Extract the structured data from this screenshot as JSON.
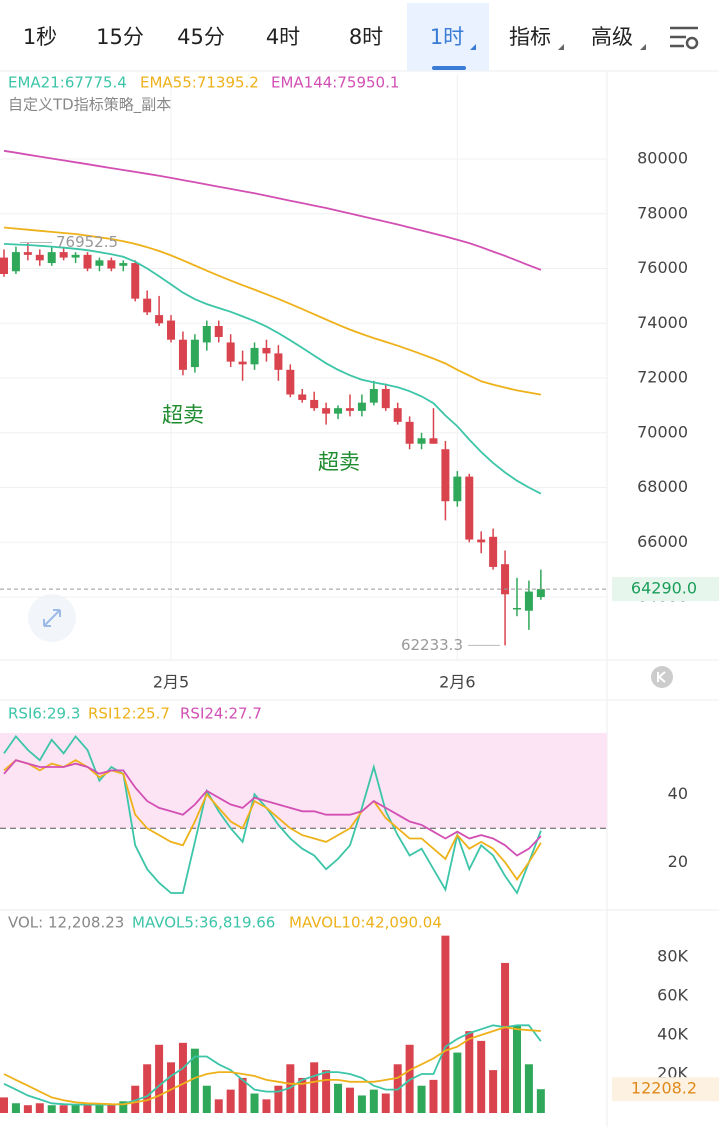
{
  "tabs": [
    "1秒",
    "15分",
    "45分",
    "4时",
    "8时",
    "1时",
    "指标",
    "高级"
  ],
  "active_tab": 5,
  "chart_data": [
    {
      "type": "candlestick",
      "legend": [
        {
          "text": "EMA21:67775.4",
          "color": "#3cc5a8"
        },
        {
          "text": "EMA55:71395.2",
          "color": "#eeb11a"
        },
        {
          "text": "EMA144:75950.1",
          "color": "#d24fb4"
        }
      ],
      "subtitle": "自定义TD指标策略_副本",
      "categories": [
        null,
        null,
        null,
        null,
        null,
        null,
        null,
        null,
        null,
        null,
        null,
        null,
        null,
        null,
        "2月5",
        null,
        null,
        null,
        null,
        null,
        null,
        null,
        null,
        null,
        null,
        null,
        null,
        null,
        null,
        null,
        null,
        null,
        null,
        null,
        null,
        null,
        null,
        null,
        "2月6",
        null,
        null,
        null,
        null,
        null,
        null,
        null
      ],
      "open": [
        76400,
        75900,
        76600,
        76500,
        76200,
        76600,
        76400,
        76500,
        76100,
        76300,
        76100,
        76200,
        74900,
        74300,
        74100,
        73400,
        72400,
        73300,
        73900,
        73300,
        72600,
        72500,
        73100,
        72900,
        72300,
        71400,
        71200,
        70900,
        70700,
        70900,
        70800,
        71100,
        71600,
        70900,
        70400,
        69600,
        69800,
        69400,
        67500,
        68400,
        66100,
        66200,
        65200,
        63600,
        63500,
        64000
      ],
      "high": [
        76700,
        76800,
        76952.5,
        76700,
        76800,
        76800,
        76600,
        76600,
        76400,
        76400,
        76300,
        76300,
        75200,
        75000,
        74300,
        73700,
        73600,
        74100,
        74100,
        73600,
        73000,
        73300,
        73400,
        73200,
        72500,
        71600,
        71500,
        71100,
        71000,
        71400,
        71400,
        71900,
        71800,
        71100,
        70600,
        70000,
        70900,
        69700,
        68600,
        68500,
        66400,
        66500,
        65700,
        64700,
        64600,
        65000
      ],
      "low": [
        75700,
        75800,
        76300,
        76100,
        76100,
        76300,
        76200,
        75900,
        75900,
        75900,
        75900,
        74800,
        74300,
        73900,
        73300,
        72100,
        72200,
        73000,
        73300,
        72400,
        71900,
        72300,
        72600,
        71900,
        71300,
        71100,
        70800,
        70300,
        70500,
        70600,
        70600,
        71000,
        70800,
        70300,
        69400,
        69400,
        69600,
        66800,
        67300,
        66000,
        65600,
        65000,
        62233.3,
        63300,
        62800,
        63900
      ],
      "close": [
        75800,
        76600,
        76500,
        76300,
        76600,
        76400,
        76500,
        76000,
        76300,
        76000,
        76200,
        74900,
        74400,
        74000,
        73400,
        72300,
        73400,
        73900,
        73500,
        72600,
        72500,
        73100,
        72900,
        72300,
        71400,
        71200,
        70900,
        70700,
        70900,
        70800,
        71100,
        71600,
        70900,
        70400,
        69600,
        69800,
        69600,
        67500,
        68400,
        66100,
        66000,
        65100,
        64100,
        63600,
        64200,
        64290
      ],
      "up_color": "#2fa85a",
      "down_color": "#d9434e",
      "series": [
        {
          "color": "#3cc5a8",
          "values": [
            76900,
            76880,
            76860,
            76830,
            76800,
            76760,
            76720,
            76670,
            76600,
            76520,
            76430,
            76250,
            76000,
            75720,
            75420,
            75120,
            74880,
            74700,
            74560,
            74420,
            74250,
            74080,
            73880,
            73640,
            73380,
            73100,
            72820,
            72540,
            72300,
            72100,
            71940,
            71840,
            71760,
            71660,
            71520,
            71330,
            71080,
            70630,
            70240,
            69750,
            69300,
            68900,
            68550,
            68250,
            68000,
            67775.4
          ]
        },
        {
          "color": "#eeb11a",
          "values": [
            77500,
            77460,
            77420,
            77380,
            77340,
            77300,
            77260,
            77200,
            77140,
            77080,
            77000,
            76900,
            76780,
            76640,
            76480,
            76300,
            76110,
            75920,
            75740,
            75560,
            75390,
            75230,
            75060,
            74890,
            74710,
            74520,
            74330,
            74140,
            73950,
            73770,
            73610,
            73460,
            73320,
            73180,
            73030,
            72870,
            72710,
            72530,
            72300,
            72090,
            71880,
            71760,
            71650,
            71550,
            71470,
            71395.2
          ]
        },
        {
          "color": "#d24fb4",
          "values": [
            80300,
            80230,
            80160,
            80090,
            80020,
            79950,
            79880,
            79810,
            79740,
            79670,
            79600,
            79530,
            79460,
            79390,
            79310,
            79230,
            79150,
            79070,
            78990,
            78910,
            78830,
            78750,
            78660,
            78570,
            78480,
            78390,
            78300,
            78210,
            78110,
            78010,
            77910,
            77810,
            77710,
            77610,
            77500,
            77390,
            77280,
            77170,
            77050,
            76930,
            76780,
            76620,
            76460,
            76290,
            76120,
            75950.1
          ]
        }
      ],
      "ylim": [
        61700,
        83070
      ],
      "yticks": [
        64000,
        66000,
        68000,
        70000,
        72000,
        74000,
        76000,
        78000,
        80000
      ],
      "grid": true,
      "high_label": 76952.5,
      "low_label": 62233.3,
      "last_price": {
        "value": 64290,
        "label": "64290.0"
      },
      "annotations": [
        "超卖",
        "超卖"
      ]
    },
    {
      "type": "line",
      "legend": [
        {
          "text": "RSI6:29.3",
          "color": "#3cc5a8"
        },
        {
          "text": "RSI12:25.7",
          "color": "#eeb11a"
        },
        {
          "text": "RSI24:27.7",
          "color": "#d24fb4"
        }
      ],
      "series": [
        {
          "color": "#3cc5a8",
          "values": [
            52,
            57,
            53,
            50,
            56,
            52,
            57,
            53,
            44,
            48,
            46,
            25,
            18,
            14,
            11,
            11,
            26,
            41,
            35,
            30,
            26,
            40,
            36,
            31,
            27,
            24,
            22,
            18,
            21,
            25,
            36,
            48,
            35,
            28,
            22,
            24,
            18,
            12,
            28,
            18,
            25,
            22,
            16,
            11,
            20,
            29.3
          ]
        },
        {
          "color": "#eeb11a",
          "values": [
            47,
            50,
            49,
            47,
            49,
            48,
            50,
            48,
            45,
            47,
            46,
            34,
            30,
            28,
            26,
            25,
            32,
            40,
            36,
            32,
            30,
            38,
            36,
            33,
            30,
            28,
            27,
            26,
            28,
            30,
            35,
            38,
            33,
            30,
            27,
            27,
            24,
            21,
            28,
            24,
            26,
            24,
            20,
            15,
            20,
            25.7
          ]
        },
        {
          "color": "#d24fb4",
          "values": [
            46,
            50,
            49,
            48,
            48,
            48,
            49,
            48,
            46,
            47,
            47,
            42,
            38,
            36,
            35,
            34,
            37,
            41,
            39,
            37,
            36,
            39,
            38,
            37,
            36,
            35,
            35,
            34,
            34,
            34,
            35,
            38,
            36,
            34,
            32,
            31,
            29,
            27,
            29,
            27,
            28,
            27,
            25,
            22,
            24,
            27.7
          ]
        }
      ],
      "ylim": [
        6,
        58
      ],
      "yticks": [
        20,
        40
      ],
      "reference": 30,
      "band_color": "#fce4f4"
    },
    {
      "type": "bar",
      "legend": [
        {
          "text": "VOL: 12,208.23",
          "color": "#888888"
        },
        {
          "text": "MAVOL5:36,819.66",
          "color": "#3cc5a8"
        },
        {
          "text": "MAVOL10:42,090.04",
          "color": "#eeb11a"
        }
      ],
      "values": [
        8000,
        5000,
        4000,
        5000,
        4000,
        4000,
        4000,
        5000,
        4000,
        4000,
        6000,
        14000,
        25000,
        35000,
        26000,
        36000,
        33000,
        14000,
        7000,
        12000,
        18000,
        10000,
        7000,
        14000,
        25000,
        18000,
        26000,
        22000,
        15000,
        13000,
        9000,
        12000,
        10000,
        25000,
        35000,
        14000,
        17000,
        91000,
        31000,
        42000,
        37000,
        22000,
        77000,
        45000,
        25000,
        12208.23
      ],
      "series": [
        {
          "color": "#3cc5a8",
          "values": [
            15000,
            12000,
            9000,
            7000,
            5000,
            4500,
            4300,
            4300,
            4300,
            4300,
            4600,
            6500,
            8600,
            14000,
            19000,
            23000,
            29000,
            29000,
            25000,
            22000,
            17000,
            12000,
            11000,
            11000,
            13000,
            17000,
            19000,
            21000,
            21000,
            20000,
            18000,
            14000,
            12000,
            12000,
            17000,
            20000,
            20000,
            34000,
            38000,
            41000,
            43000,
            45000,
            44000,
            45000,
            45000,
            36819.66
          ]
        },
        {
          "color": "#eeb11a",
          "values": [
            20000,
            17000,
            14000,
            11000,
            8000,
            6500,
            5500,
            5000,
            4800,
            4500,
            4400,
            5500,
            6500,
            9000,
            12000,
            15000,
            18000,
            20000,
            21000,
            21000,
            20000,
            19000,
            17000,
            16000,
            15000,
            15000,
            16000,
            17000,
            17000,
            16000,
            16000,
            16000,
            17000,
            18000,
            22000,
            25000,
            28000,
            32000,
            34000,
            38000,
            40000,
            42000,
            44000,
            43000,
            42500,
            42090.04
          ]
        }
      ],
      "ylim": [
        0,
        98000
      ],
      "yticks": [
        {
          "value": 20000,
          "label": "20K"
        },
        {
          "value": 40000,
          "label": "40K"
        },
        {
          "value": 60000,
          "label": "60K"
        },
        {
          "value": 80000,
          "label": "80K"
        }
      ],
      "last_value": 12208.2
    }
  ]
}
